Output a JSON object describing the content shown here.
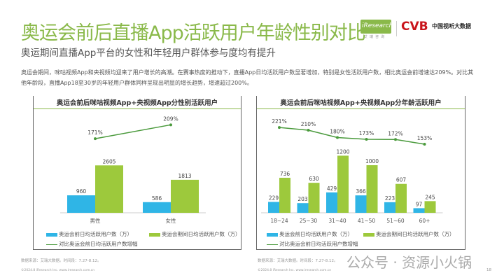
{
  "header": {
    "title": "奥运会前后直播App活跃用户年龄性别对比",
    "subtitle": "奥运期间直播App平台的女性和年轻用户群体参与度均有提升",
    "body": "奥运会期间，咪咕视频App和央视频均迎来了用户增长的高潮。在赛事热度的推动下，直播App日均活跃用户数显著增加，特别是女性活跃用户数，相比奥运会前增速达209%。对比其他年龄段，直播App18至30岁的年轻用户群体同样呈现出明显的增长趋势，增速超过200%。",
    "logo_iresearch": "iResearch",
    "logo_iresearch_sub": "艾瑞咨询",
    "logo_cvb": "CVB",
    "logo_cvb_text": "中国视听大数据"
  },
  "colors": {
    "before": "#2fb5e6",
    "during": "#9dc93c",
    "growth": "#4a9a3c",
    "accent": "#8ab94a"
  },
  "legend": {
    "before": "奥运会前日均活跃用户数（万）",
    "during": "奥运会期间日均活跃用户数（万）",
    "growth": "对比奥运会前日均活跃用户数增幅"
  },
  "chart_data": [
    {
      "type": "bar",
      "title": "奥运会前后咪咕视频App+央视频App分性别活跃用户",
      "categories": [
        "男性",
        "女性"
      ],
      "series": [
        {
          "name": "奥运会前日均活跃用户数（万）",
          "values": [
            960,
            586
          ]
        },
        {
          "name": "奥运会期间日均活跃用户数（万）",
          "values": [
            2605,
            1813
          ]
        },
        {
          "name": "对比奥运会前日均活跃用户数增幅",
          "type": "line",
          "values": [
            171,
            209
          ],
          "labels": [
            "171%",
            "209%"
          ]
        }
      ],
      "legend": "bottom"
    },
    {
      "type": "bar",
      "title": "奥运会前后咪咕视频App+央视频App分年龄活跃用户",
      "categories": [
        "18~24",
        "25~30",
        "31~40",
        "41~50",
        "51~60",
        "60+"
      ],
      "series": [
        {
          "name": "奥运会前日均活跃用户数（万）",
          "values": [
            229,
            203,
            429,
            366,
            223,
            97
          ]
        },
        {
          "name": "奥运会期间日均活跃用户数（万）",
          "values": [
            736,
            630,
            1200,
            1000,
            607,
            245
          ]
        },
        {
          "name": "对比奥运会前日均活跃用户数增幅",
          "type": "line",
          "values": [
            221,
            210,
            180,
            173,
            172,
            153
          ],
          "labels": [
            "221%",
            "210%",
            "180%",
            "173%",
            "172%",
            "153%"
          ]
        }
      ],
      "legend": "bottom"
    }
  ],
  "footer": {
    "source_left": "数据来源：艾瑞大数据。时间段：7.27-8.12。",
    "source_right": "数据来源：艾瑞大数据。时间段：7.27-8.12。",
    "copyright": "©2024.8 iResearch Inc. www.iresearch.com.cn",
    "page": "18",
    "watermark": "公众号 · 资源小火锅"
  }
}
